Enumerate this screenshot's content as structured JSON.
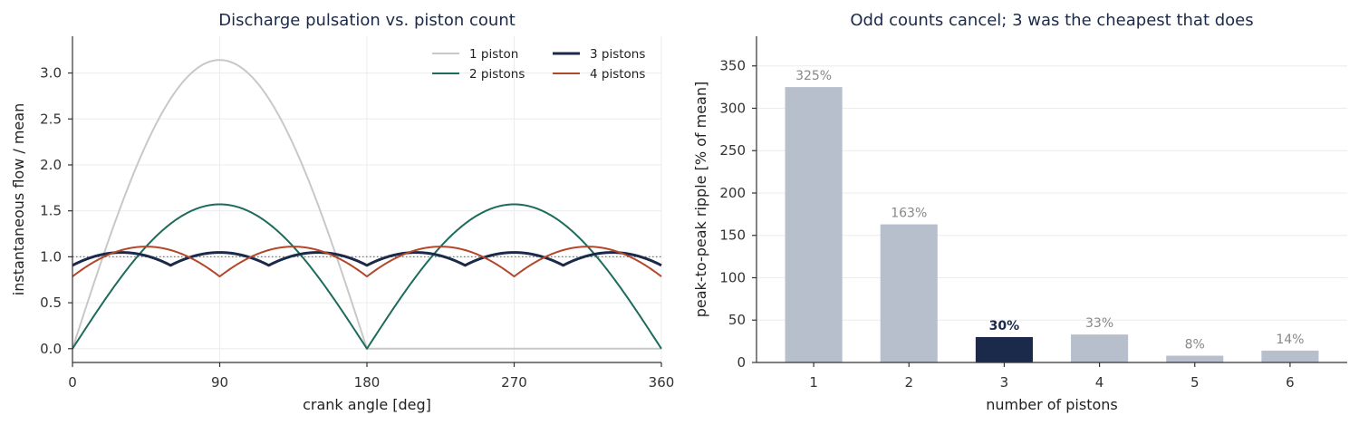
{
  "chart_data": [
    {
      "type": "line",
      "title": "Discharge pulsation vs. piston count",
      "xlabel": "crank angle [deg]",
      "ylabel": "instantaneous flow / mean",
      "xlim": [
        0,
        360
      ],
      "ylim": [
        -0.15,
        3.4
      ],
      "xticks": [
        "0",
        "90",
        "180",
        "270",
        "360"
      ],
      "yticks": [
        "0.0",
        "0.5",
        "1.0",
        "1.5",
        "2.0",
        "2.5",
        "3.0"
      ],
      "grid": true,
      "legend": "top-right",
      "reference_line": {
        "y": 1.0,
        "style": "dotted",
        "color": "#777777"
      },
      "series": [
        {
          "name": "1 piston",
          "pistons": 1,
          "color": "#c8c8c8",
          "emphasis": false
        },
        {
          "name": "2 pistons",
          "pistons": 2,
          "color": "#1e6b5c",
          "emphasis": false
        },
        {
          "name": "3 pistons",
          "pistons": 3,
          "color": "#1b2a4a",
          "emphasis": true
        },
        {
          "name": "4 pistons",
          "pistons": 4,
          "color": "#b3472b",
          "emphasis": false
        }
      ]
    },
    {
      "type": "bar",
      "title": "Odd counts cancel; 3 was the cheapest that does",
      "xlabel": "number of pistons",
      "ylabel": "peak-to-peak ripple [% of mean]",
      "ylim": [
        0,
        385
      ],
      "yticks": [
        "0",
        "50",
        "100",
        "150",
        "200",
        "250",
        "300",
        "350"
      ],
      "grid": true,
      "categories": [
        "1",
        "2",
        "3",
        "4",
        "5",
        "6"
      ],
      "values": [
        325,
        163,
        30,
        33,
        8,
        14
      ],
      "data_labels": [
        "325%",
        "163%",
        "30%",
        "33%",
        "8%",
        "14%"
      ],
      "highlight_index": 2,
      "colors": {
        "bar": "#b8bfcc",
        "highlight": "#1b2a4a",
        "label": "#888888"
      }
    }
  ]
}
